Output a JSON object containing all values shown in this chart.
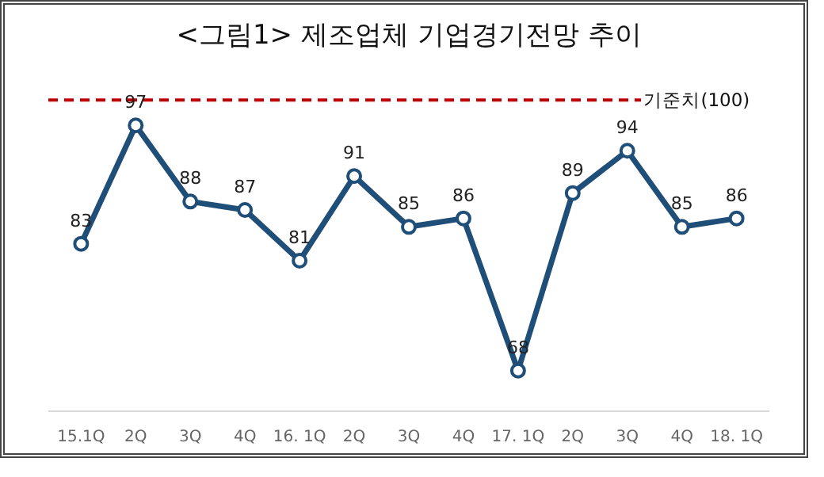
{
  "chart_data": {
    "type": "line",
    "title": "<그림1> 제조업체 기업경기전망 추이",
    "categories": [
      "15.1Q",
      "2Q",
      "3Q",
      "4Q",
      "16. 1Q",
      "2Q",
      "3Q",
      "4Q",
      "17. 1Q",
      "2Q",
      "3Q",
      "4Q",
      "18. 1Q"
    ],
    "series": [
      {
        "color": "#1f4e79",
        "values": [
          83,
          97,
          88,
          87,
          81,
          91,
          85,
          86,
          68,
          89,
          94,
          85,
          86
        ]
      }
    ],
    "tick_labels": "x",
    "marker": "circle",
    "line_style": "solid",
    "data_labels": true,
    "grid": false,
    "ref_lines": [
      {
        "axis": "y",
        "value": 100,
        "label": "기준치(100)",
        "color": "#c00000",
        "line_style": "dashed"
      }
    ]
  }
}
